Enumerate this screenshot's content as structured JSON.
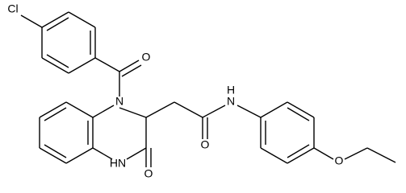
{
  "nodes": [
    {
      "label": "Cl"
    },
    {
      "label": "O"
    },
    {
      "label": "N"
    },
    {
      "label": "HN"
    },
    {
      "label": "O"
    },
    {
      "label": "O"
    },
    {
      "label": "H"
    },
    {
      "label": "N"
    },
    {
      "label": "O"
    }
  ]
}
